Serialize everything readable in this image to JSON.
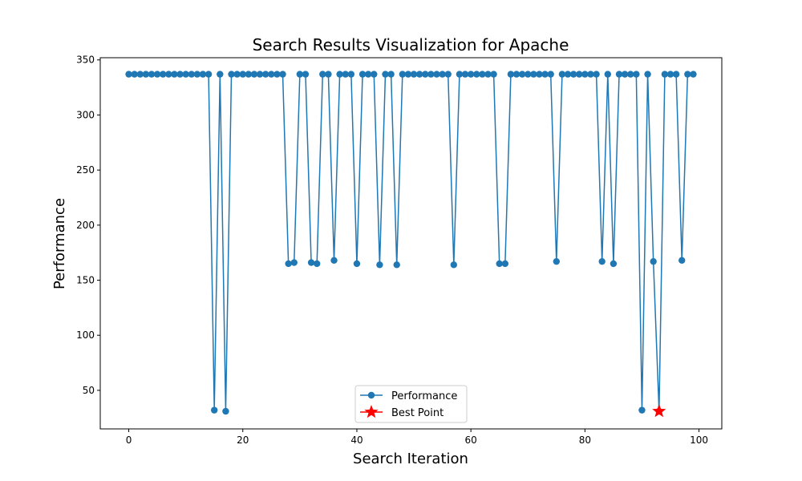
{
  "chart_data": {
    "type": "line",
    "title": "Search Results Visualization for Apache",
    "xlabel": "Search Iteration",
    "ylabel": "Performance",
    "xlim": [
      -5,
      104
    ],
    "ylim": [
      15,
      352
    ],
    "xticks": [
      0,
      20,
      40,
      60,
      80,
      100
    ],
    "yticks": [
      50,
      100,
      150,
      200,
      250,
      300,
      350
    ],
    "grid": false,
    "legend_position": "lower center",
    "series": [
      {
        "name": "Performance",
        "color": "#1f77b4",
        "marker": "circle",
        "x": [
          0,
          1,
          2,
          3,
          4,
          5,
          6,
          7,
          8,
          9,
          10,
          11,
          12,
          13,
          14,
          15,
          16,
          17,
          18,
          19,
          20,
          21,
          22,
          23,
          24,
          25,
          26,
          27,
          28,
          29,
          30,
          31,
          32,
          33,
          34,
          35,
          36,
          37,
          38,
          39,
          40,
          41,
          42,
          43,
          44,
          45,
          46,
          47,
          48,
          49,
          50,
          51,
          52,
          53,
          54,
          55,
          56,
          57,
          58,
          59,
          60,
          61,
          62,
          63,
          64,
          65,
          66,
          67,
          68,
          69,
          70,
          71,
          72,
          73,
          74,
          75,
          76,
          77,
          78,
          79,
          80,
          81,
          82,
          83,
          84,
          85,
          86,
          87,
          88,
          89,
          90,
          91,
          92,
          93,
          94,
          95,
          96,
          97,
          98,
          99
        ],
        "y": [
          337,
          337,
          337,
          337,
          337,
          337,
          337,
          337,
          337,
          337,
          337,
          337,
          337,
          337,
          337,
          32,
          337,
          31,
          337,
          337,
          337,
          337,
          337,
          337,
          337,
          337,
          337,
          337,
          165,
          166,
          337,
          337,
          166,
          165,
          337,
          337,
          168,
          337,
          337,
          337,
          165,
          337,
          337,
          337,
          164,
          337,
          337,
          164,
          337,
          337,
          337,
          337,
          337,
          337,
          337,
          337,
          337,
          164,
          337,
          337,
          337,
          337,
          337,
          337,
          337,
          165,
          165,
          337,
          337,
          337,
          337,
          337,
          337,
          337,
          337,
          167,
          337,
          337,
          337,
          337,
          337,
          337,
          337,
          167,
          337,
          165,
          337,
          337,
          337,
          337,
          32,
          337,
          167,
          31,
          337,
          337,
          337,
          168,
          337,
          337
        ]
      },
      {
        "name": "Best Point",
        "color": "#ff0000",
        "marker": "star",
        "x": [
          93
        ],
        "y": [
          31
        ]
      }
    ]
  }
}
